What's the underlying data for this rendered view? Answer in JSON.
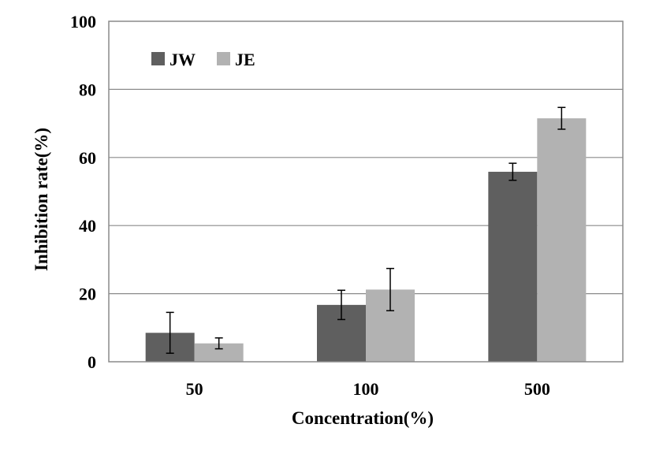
{
  "chart_data": {
    "type": "bar",
    "title": "",
    "xlabel": "Concentration(%)",
    "ylabel": "Inhibition rate(%)",
    "categories": [
      "50",
      "100",
      "500"
    ],
    "series": [
      {
        "name": "JW",
        "color": "#5f5f5f",
        "values": [
          8.5,
          16.7,
          55.8
        ],
        "errors": [
          6.0,
          4.3,
          2.5
        ]
      },
      {
        "name": "JE",
        "color": "#b2b2b2",
        "values": [
          5.4,
          21.2,
          71.5
        ],
        "errors": [
          1.6,
          6.2,
          3.2
        ]
      }
    ],
    "ylim": [
      0,
      100
    ],
    "yticks": [
      "0",
      "20",
      "40",
      "60",
      "80",
      "100"
    ],
    "grid": true,
    "legend_position": "top-left"
  }
}
